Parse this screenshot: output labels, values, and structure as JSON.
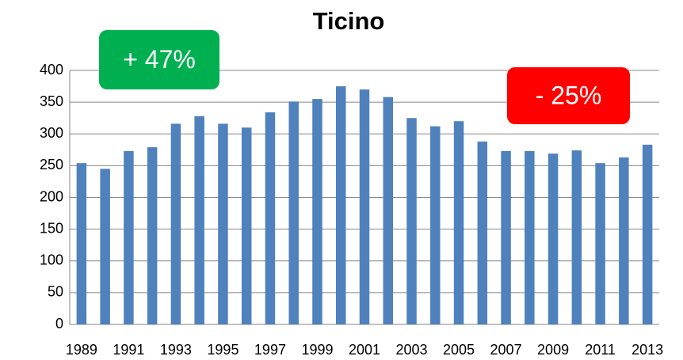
{
  "chart_data": {
    "type": "bar",
    "title": "Ticino",
    "categories": [
      "1989",
      null,
      "1991",
      null,
      "1993",
      null,
      "1995",
      null,
      "1997",
      null,
      "1999",
      null,
      "2001",
      null,
      "2003",
      null,
      "2005",
      null,
      "2007",
      null,
      "2009",
      null,
      "2011",
      null,
      "2013"
    ],
    "values": [
      254,
      245,
      273,
      279,
      316,
      328,
      316,
      310,
      334,
      351,
      355,
      375,
      370,
      358,
      325,
      312,
      320,
      288,
      273,
      273,
      269,
      274,
      254,
      263,
      283
    ],
    "color": "#4f81bd",
    "ylim": [
      0,
      400
    ],
    "yticks": [
      0,
      50,
      100,
      150,
      200,
      250,
      300,
      350,
      400
    ],
    "grid": true,
    "annotations": [
      {
        "text": "+ 47%",
        "color": "#00b050"
      },
      {
        "text": "- 25%",
        "color": "#ff0000"
      }
    ]
  }
}
